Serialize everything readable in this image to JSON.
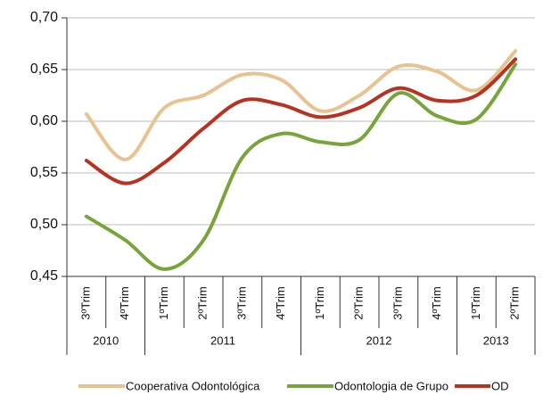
{
  "chart_data": {
    "type": "line",
    "groups": [
      {
        "label": "2010",
        "categories": [
          "3ºTrim",
          "4ºTrim"
        ]
      },
      {
        "label": "2011",
        "categories": [
          "1ºTrim",
          "2ºTrim",
          "3ºTrim",
          "4ºTrim"
        ]
      },
      {
        "label": "2012",
        "categories": [
          "1ºTrim",
          "2ºTrim",
          "3ºTrim",
          "4ºTrim"
        ]
      },
      {
        "label": "2013",
        "categories": [
          "1ºTrim",
          "2ºTrim"
        ]
      }
    ],
    "series": [
      {
        "name": "Cooperativa Odontológica",
        "color": "#e8c290",
        "values": [
          0.607,
          0.563,
          0.613,
          0.625,
          0.645,
          0.64,
          0.61,
          0.625,
          0.653,
          0.648,
          0.63,
          0.668
        ]
      },
      {
        "name": "Odontologia de Grupo",
        "color": "#78a53a",
        "values": [
          0.508,
          0.485,
          0.457,
          0.485,
          0.565,
          0.588,
          0.58,
          0.582,
          0.627,
          0.605,
          0.602,
          0.655
        ]
      },
      {
        "name": "OD",
        "color": "#b83222",
        "values": [
          0.562,
          0.54,
          0.56,
          0.593,
          0.62,
          0.616,
          0.604,
          0.613,
          0.632,
          0.62,
          0.625,
          0.66
        ]
      }
    ],
    "ylim": [
      0.45,
      0.7
    ],
    "yticks": [
      {
        "value": 0.45,
        "label": "0,45"
      },
      {
        "value": 0.5,
        "label": "0,50"
      },
      {
        "value": 0.55,
        "label": "0,55"
      },
      {
        "value": 0.6,
        "label": "0,60"
      },
      {
        "value": 0.65,
        "label": "0,65"
      },
      {
        "value": 0.7,
        "label": "0,70"
      }
    ],
    "grid": true
  }
}
